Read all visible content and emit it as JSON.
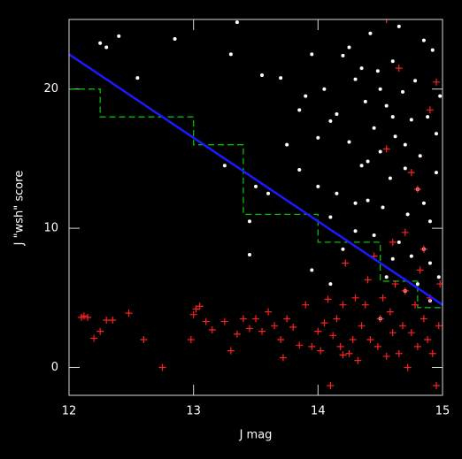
{
  "chart_data": {
    "type": "scatter",
    "xlabel": "J mag",
    "ylabel": "J \"wsh\" score",
    "xlim": [
      12,
      15
    ],
    "ylim": [
      -2,
      25
    ],
    "xticks": [
      12,
      13,
      14,
      15
    ],
    "yticks": [
      0,
      10,
      20
    ],
    "grid": false,
    "series": [
      {
        "kind": "line",
        "style": "dashed",
        "color": "#00c000",
        "x": [
          12,
          12.25,
          12.25,
          13,
          13,
          13.4,
          13.4,
          14,
          14,
          14.5,
          14.5,
          14.8,
          14.8,
          15
        ],
        "values": [
          20,
          20,
          18,
          18,
          16,
          16,
          11,
          11,
          9,
          9,
          6.2,
          6.2,
          4.3,
          4.3
        ]
      },
      {
        "kind": "scatter",
        "marker": "dot",
        "color": "#ffffff",
        "x": [
          12.25,
          12.4,
          12.3,
          12.55,
          12.85,
          13.3,
          13.35,
          13.55,
          13.7,
          13.9,
          13.95,
          14.05,
          14.1,
          14.15,
          14.2,
          14.25,
          14.3,
          14.35,
          14.38,
          14.4,
          14.42,
          14.45,
          14.48,
          14.5,
          14.52,
          14.55,
          14.58,
          14.6,
          14.62,
          14.65,
          14.68,
          14.7,
          14.72,
          14.75,
          14.78,
          14.8,
          14.82,
          14.85,
          14.88,
          14.9,
          14.92,
          14.95,
          14.97,
          14.98,
          14.6,
          14.7,
          14.8,
          14.9,
          13.6,
          13.75,
          13.85,
          14.0,
          13.25,
          13.45,
          13.95,
          14.1,
          14.2,
          14.3,
          14.45,
          14.55,
          14.75,
          14.65,
          14.85,
          14.95,
          14.4,
          14.15,
          14.0,
          13.85,
          14.25,
          14.5,
          14.35,
          14.6,
          14.85,
          14.7,
          14.3,
          13.5,
          13.45,
          14.1,
          14.5,
          14.9
        ],
        "values": [
          23.3,
          23.8,
          23.0,
          20.8,
          23.6,
          22.5,
          24.8,
          21.0,
          20.8,
          19.5,
          22.5,
          20.0,
          17.7,
          18.2,
          22.4,
          16.2,
          20.7,
          14.5,
          19.1,
          12.0,
          24.0,
          17.2,
          21.3,
          15.5,
          11.5,
          18.8,
          13.6,
          22.0,
          16.6,
          9.0,
          19.8,
          14.3,
          11.0,
          17.8,
          20.6,
          12.8,
          15.2,
          8.5,
          18.0,
          10.5,
          22.8,
          14.0,
          6.5,
          19.5,
          7.8,
          5.5,
          6.0,
          4.8,
          12.5,
          16.0,
          14.2,
          13.0,
          14.5,
          10.5,
          7.0,
          10.8,
          8.5,
          11.8,
          9.5,
          6.5,
          8.0,
          24.5,
          23.5,
          16.8,
          14.8,
          12.5,
          16.5,
          18.5,
          23.0,
          20.0,
          21.5,
          18.0,
          11.8,
          16.0,
          9.8,
          13.0,
          8.1,
          6.0,
          3.5,
          7.5
        ]
      },
      {
        "kind": "scatter",
        "marker": "plus",
        "color": "#ff2020",
        "x": [
          12.1,
          12.15,
          12.2,
          12.25,
          12.3,
          12.35,
          12.48,
          12.6,
          12.75,
          12.98,
          13.02,
          13.05,
          13.1,
          13.15,
          13.3,
          13.35,
          13.4,
          13.45,
          13.5,
          13.55,
          13.6,
          13.65,
          13.7,
          13.72,
          13.75,
          13.8,
          13.85,
          13.9,
          13.95,
          14.0,
          14.02,
          14.05,
          14.08,
          14.1,
          14.12,
          14.15,
          14.18,
          14.2,
          14.22,
          14.25,
          14.28,
          14.3,
          14.32,
          14.35,
          14.38,
          14.4,
          14.42,
          14.45,
          14.48,
          14.5,
          14.52,
          14.55,
          14.58,
          14.6,
          14.62,
          14.65,
          14.68,
          14.7,
          14.72,
          14.75,
          14.78,
          14.8,
          14.82,
          14.85,
          14.88,
          14.9,
          14.92,
          14.95,
          14.97,
          14.98,
          14.55,
          14.7,
          14.75,
          14.8,
          14.9,
          14.95,
          14.65,
          14.55,
          14.85,
          14.6,
          14.2,
          13.25,
          13.0,
          12.12
        ],
        "values": [
          3.6,
          3.6,
          2.1,
          2.6,
          3.4,
          3.4,
          3.9,
          2.0,
          0.0,
          2.0,
          4.2,
          4.4,
          3.3,
          2.7,
          1.2,
          2.4,
          3.5,
          2.8,
          3.5,
          2.6,
          4.0,
          3.0,
          2.0,
          0.7,
          3.5,
          2.9,
          1.6,
          4.5,
          1.5,
          2.6,
          1.2,
          3.2,
          4.9,
          -1.3,
          2.3,
          3.5,
          1.5,
          4.5,
          7.5,
          1.0,
          2.0,
          5.0,
          0.5,
          3.0,
          4.5,
          6.3,
          2.0,
          8.0,
          1.5,
          3.5,
          5.0,
          0.8,
          4.0,
          2.5,
          6.0,
          1.0,
          3.0,
          5.5,
          0.0,
          2.5,
          4.5,
          1.5,
          7.0,
          3.5,
          2.0,
          5.0,
          1.0,
          -1.3,
          3.0,
          6.0,
          15.7,
          9.7,
          14.0,
          12.8,
          18.5,
          20.5,
          21.5,
          25.0,
          8.5,
          9.0,
          0.9,
          3.3,
          3.8,
          3.7
        ]
      },
      {
        "kind": "line",
        "style": "solid",
        "color": "#1a1aff",
        "x": [
          12,
          15
        ],
        "values": [
          22.5,
          4.5
        ]
      }
    ]
  }
}
